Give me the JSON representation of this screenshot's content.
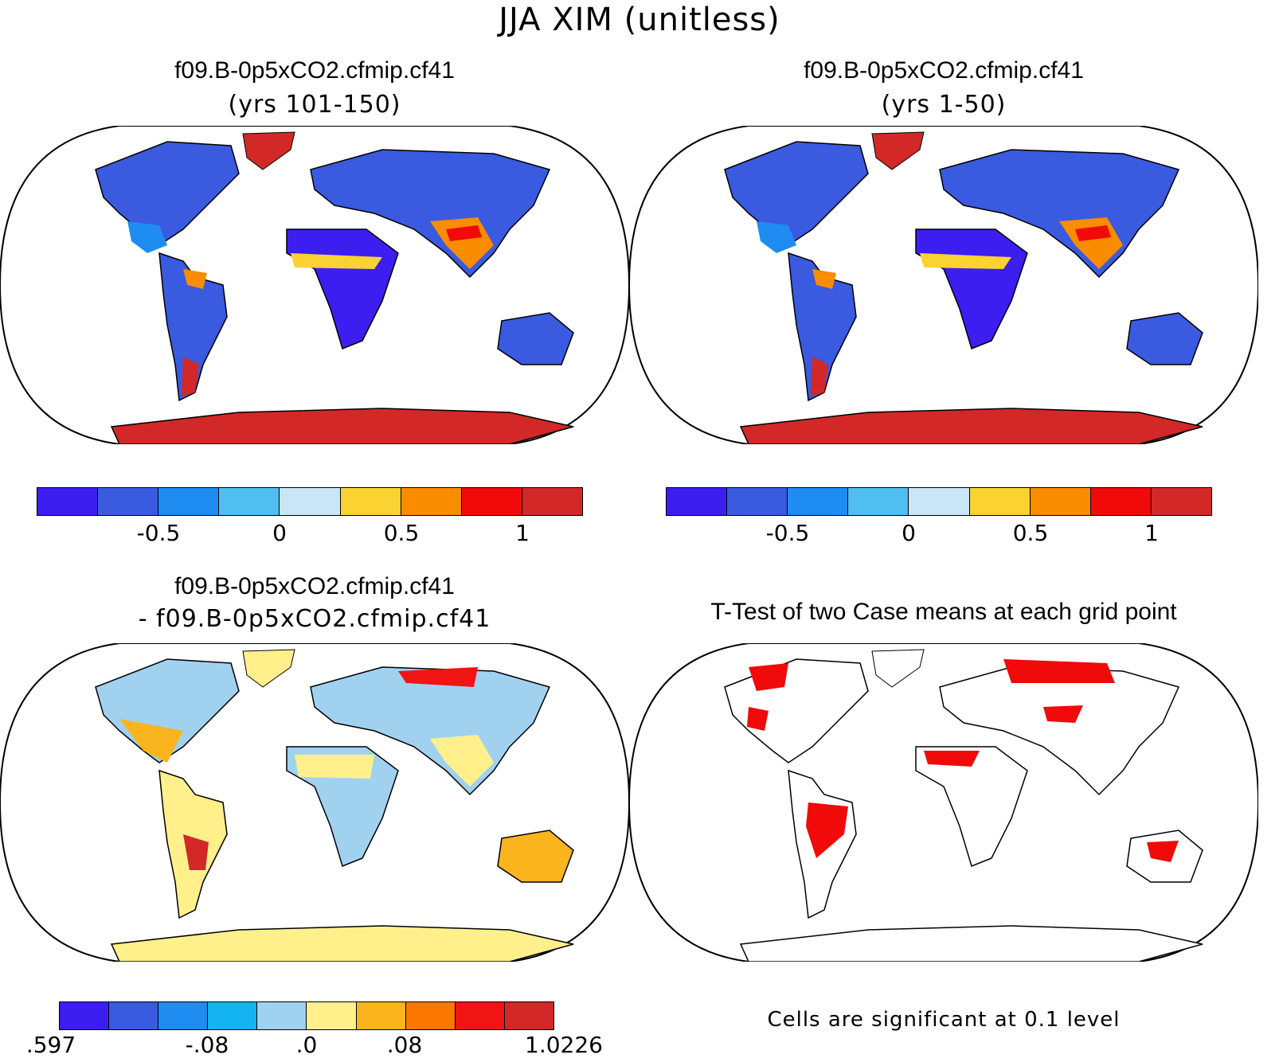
{
  "figure": {
    "title": "JJA XIM (unitless)"
  },
  "panels": [
    {
      "title": "f09.B-0p5xCO2.cfmip.cf41",
      "subtitle": "(yrs 101-150)",
      "kind": "field"
    },
    {
      "title": "f09.B-0p5xCO2.cfmip.cf41",
      "subtitle": "(yrs 1-50)",
      "kind": "field"
    },
    {
      "title": "f09.B-0p5xCO2.cfmip.cf41",
      "subtitle": "- f09.B-0p5xCO2.cfmip.cf41",
      "kind": "difference"
    },
    {
      "title": "T-Test of two Case means at each grid point",
      "subtitle": "",
      "kind": "ttest",
      "note": "Cells are significant at 0.1 level"
    }
  ],
  "colorbars": {
    "field": {
      "colors": [
        "#3c1ef0",
        "#3a5ae0",
        "#1e8cf0",
        "#50bef0",
        "#c8e6f5",
        "#fad232",
        "#fa8c00",
        "#f00a0a",
        "#d22828"
      ],
      "tick_labels": [
        "-0.5",
        "0",
        "0.5",
        "1"
      ]
    },
    "difference": {
      "colors": [
        "#3c1ef0",
        "#3a5ae0",
        "#1e8cf0",
        "#14b4f0",
        "#a0d2f0",
        "#fff08c",
        "#fab41e",
        "#fa7800",
        "#f01414",
        "#d22828"
      ],
      "tick_labels": [
        ".597",
        "-.08",
        ".0",
        ".08",
        "1.0226"
      ]
    }
  },
  "legend_note": "Cells are significant at 0.1 level"
}
